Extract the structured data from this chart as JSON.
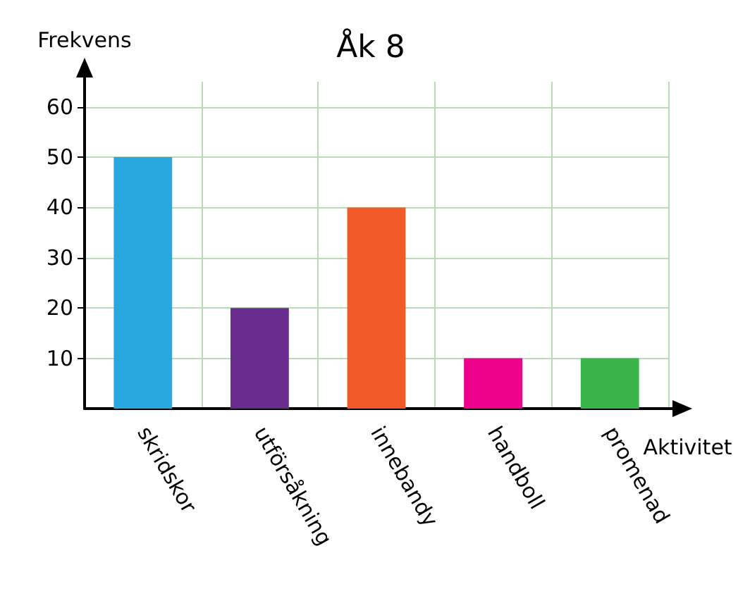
{
  "chart_data": {
    "type": "bar",
    "title": "Åk 8",
    "ylabel": "Frekvens",
    "xlabel": "Aktivitet",
    "categories": [
      "skridskor",
      "utförsåkning",
      "innebandy",
      "handboll",
      "promenad"
    ],
    "values": [
      50,
      20,
      40,
      10,
      10
    ],
    "colors": [
      "#29a8e0",
      "#6a2d8f",
      "#f15a29",
      "#ec008c",
      "#39b54a"
    ],
    "ylim": [
      0,
      65
    ],
    "yticks": [
      10,
      20,
      30,
      40,
      50,
      60
    ],
    "grid": true
  }
}
